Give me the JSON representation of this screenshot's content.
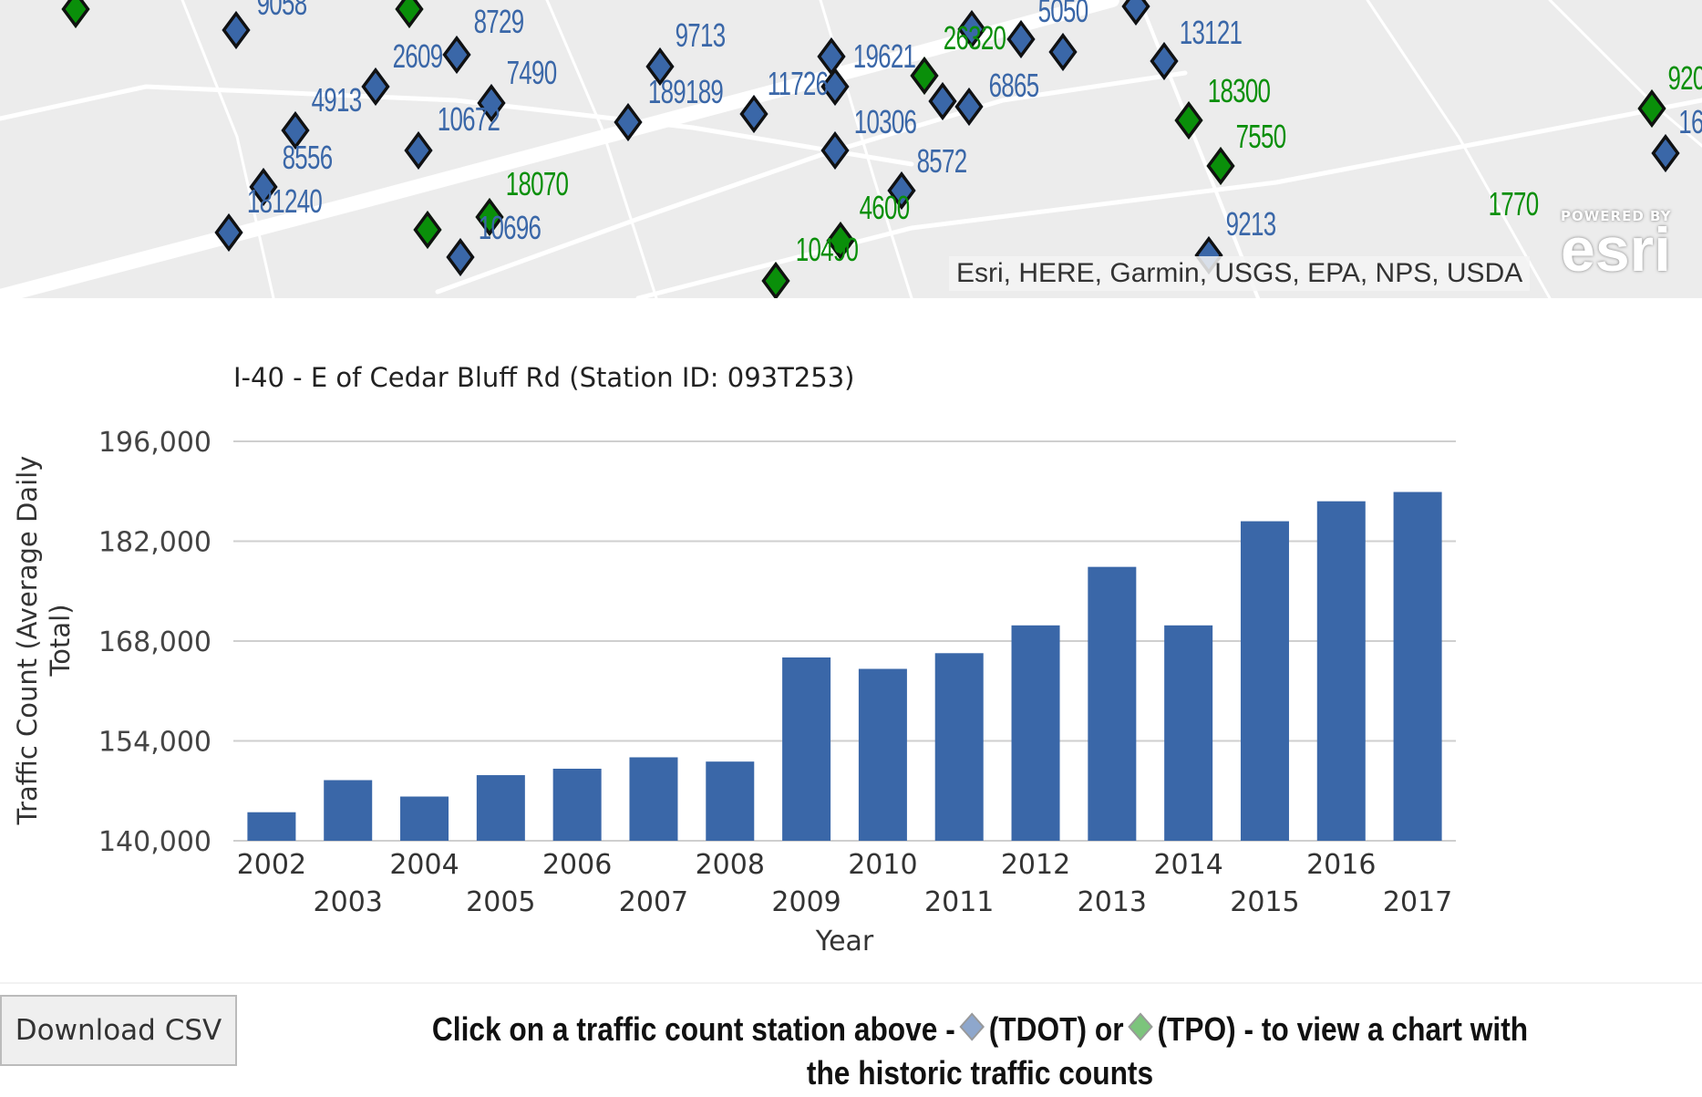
{
  "map": {
    "labels": [
      {
        "text": "9058",
        "color": "blue"
      },
      {
        "text": "8729",
        "color": "blue"
      },
      {
        "text": "2609",
        "color": "blue"
      },
      {
        "text": "7490",
        "color": "blue"
      },
      {
        "text": "4913",
        "color": "blue"
      },
      {
        "text": "10672",
        "color": "blue"
      },
      {
        "text": "8556",
        "color": "blue"
      },
      {
        "text": "181240",
        "color": "blue"
      },
      {
        "text": "18070",
        "color": "green"
      },
      {
        "text": "10696",
        "color": "blue"
      },
      {
        "text": "9713",
        "color": "blue"
      },
      {
        "text": "189189",
        "color": "blue"
      },
      {
        "text": "11726",
        "color": "blue"
      },
      {
        "text": "19621",
        "color": "blue"
      },
      {
        "text": "26320",
        "color": "green"
      },
      {
        "text": "5050",
        "color": "blue"
      },
      {
        "text": "6865",
        "color": "blue"
      },
      {
        "text": "10306",
        "color": "blue"
      },
      {
        "text": "8572",
        "color": "blue"
      },
      {
        "text": "4600",
        "color": "green"
      },
      {
        "text": "10490",
        "color": "green"
      },
      {
        "text": "13121",
        "color": "blue"
      },
      {
        "text": "18300",
        "color": "green"
      },
      {
        "text": "7550",
        "color": "green"
      },
      {
        "text": "9213",
        "color": "blue"
      },
      {
        "text": "920",
        "color": "green"
      },
      {
        "text": "16",
        "color": "blue"
      },
      {
        "text": "1770",
        "color": "green"
      }
    ],
    "attribution": "Esri, HERE, Garmin, USGS, EPA, NPS, USDA",
    "logo_powered": "POWERED BY",
    "logo": "esri",
    "colors": {
      "tdot": "#3a67a8",
      "tpo": "#0a8f0a"
    }
  },
  "chart_data": {
    "type": "bar",
    "title": "I-40 - E of Cedar Bluff Rd (Station ID: 093T253)",
    "xlabel": "Year",
    "ylabel": "Traffic Count (Average Daily Total)",
    "ylabel_lines": [
      "Traffic Count (Average Daily",
      "Total)"
    ],
    "categories": [
      "2002",
      "2003",
      "2004",
      "2005",
      "2006",
      "2007",
      "2008",
      "2009",
      "2010",
      "2011",
      "2012",
      "2013",
      "2014",
      "2015",
      "2016",
      "2017"
    ],
    "values": [
      144000,
      148500,
      146200,
      149200,
      150100,
      151700,
      151100,
      165700,
      164100,
      166300,
      170200,
      178400,
      170200,
      184800,
      187600,
      188900
    ],
    "ylim": [
      140000,
      196000
    ],
    "yticks": [
      140000,
      154000,
      168000,
      182000,
      196000
    ],
    "ytick_labels": [
      "140,000",
      "154,000",
      "168,000",
      "182,000",
      "196,000"
    ],
    "grid": true,
    "bar_color": "#3a67a8"
  },
  "footer": {
    "download_label": "Download CSV",
    "instr_before": "Click on a traffic count station above -",
    "instr_tdot": "(TDOT) or",
    "instr_tpo": "(TPO) - to view a chart with",
    "instr_line2": "the historic traffic counts"
  }
}
